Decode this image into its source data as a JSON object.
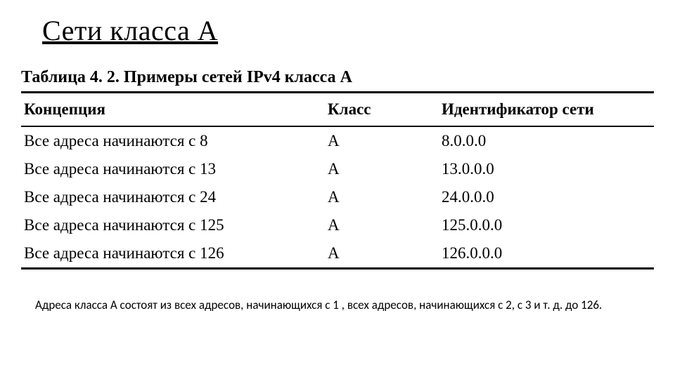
{
  "page": {
    "title": "Сети класса A",
    "caption": "Таблица 4. 2. Примеры сетей IPv4 класса А",
    "footnote": "Адреса класса А состоят из всех адресов, начинающихся с 1 , всех адресов, начинающихся с 2, с 3 и т. д. до 126."
  },
  "table": {
    "columns": [
      {
        "label": "Концепция",
        "width": "48%",
        "align": "left"
      },
      {
        "label": "Класс",
        "width": "18%",
        "align": "left"
      },
      {
        "label": "Идентификатор сети",
        "width": "34%",
        "align": "left"
      }
    ],
    "rows": [
      [
        "Все адреса начинаются с 8",
        "A",
        "8.0.0.0"
      ],
      [
        "Все адреса начинаются с 13",
        "A",
        "13.0.0.0"
      ],
      [
        "Все адреса начинаются с 24",
        "A",
        "24.0.0.0"
      ],
      [
        "Все адреса начинаются с 125",
        "A",
        "125.0.0.0"
      ],
      [
        "Все адреса начинаются с 126",
        "A",
        "126.0.0.0"
      ]
    ],
    "header_fontsize": 23,
    "header_fontweight": 700,
    "cell_fontsize": 23,
    "border_color": "#000000",
    "border_top_width": 3,
    "border_header_width": 2.5,
    "border_bottom_width": 3,
    "background_color": "#ffffff",
    "text_color": "#000000"
  },
  "styling": {
    "title_fontsize": 40,
    "title_underline": true,
    "caption_fontsize": 24,
    "caption_fontweight": 700,
    "footnote_fontsize": 17,
    "font_family_title": "Times New Roman",
    "font_family_table": "Times New Roman",
    "font_family_footnote": "Calibri"
  }
}
